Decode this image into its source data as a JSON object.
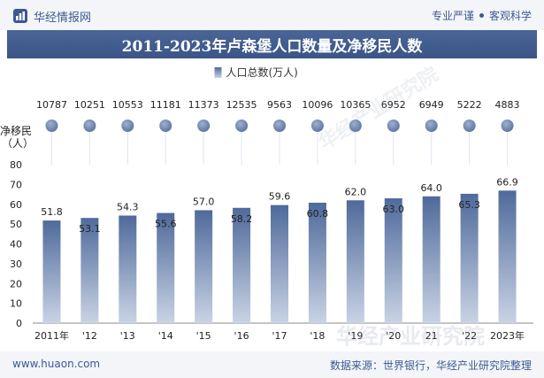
{
  "header": {
    "brand": "华经情报网",
    "tagline_left": "专业严谨",
    "tagline_right": "客观科学"
  },
  "title": "2011-2023年卢森堡人口数量及净移民人数",
  "watermark": "华经产业研究院",
  "footer": {
    "url": "www.huaon.com",
    "source": "数据来源：世界银行，华经产业研究院整理"
  },
  "chart_data": {
    "type": "bar",
    "categories": [
      "2011年",
      "'12",
      "'13",
      "'14",
      "'15",
      "'16",
      "'17",
      "'18",
      "'19",
      "'20",
      "21",
      "'22",
      "2023年"
    ],
    "series": [
      {
        "name": "人口总数(万人)",
        "type": "bar",
        "values": [
          51.8,
          53.1,
          54.3,
          55.6,
          57.0,
          58.2,
          59.6,
          60.8,
          62.0,
          63.0,
          64.0,
          65.3,
          66.9
        ],
        "color": "#4a6596"
      },
      {
        "name": "净移民（人）",
        "type": "dot",
        "values": [
          10787,
          10251,
          10553,
          11181,
          11373,
          12535,
          9563,
          10096,
          10365,
          6952,
          6949,
          5222,
          4883
        ],
        "color": "#6d83ad"
      }
    ],
    "y_axis_label": "净移民（人）",
    "ylim": [
      0,
      80
    ],
    "yticks": [
      0,
      10,
      20,
      30,
      40,
      50,
      60,
      70,
      80
    ],
    "grid": false,
    "legend": "top-center"
  }
}
